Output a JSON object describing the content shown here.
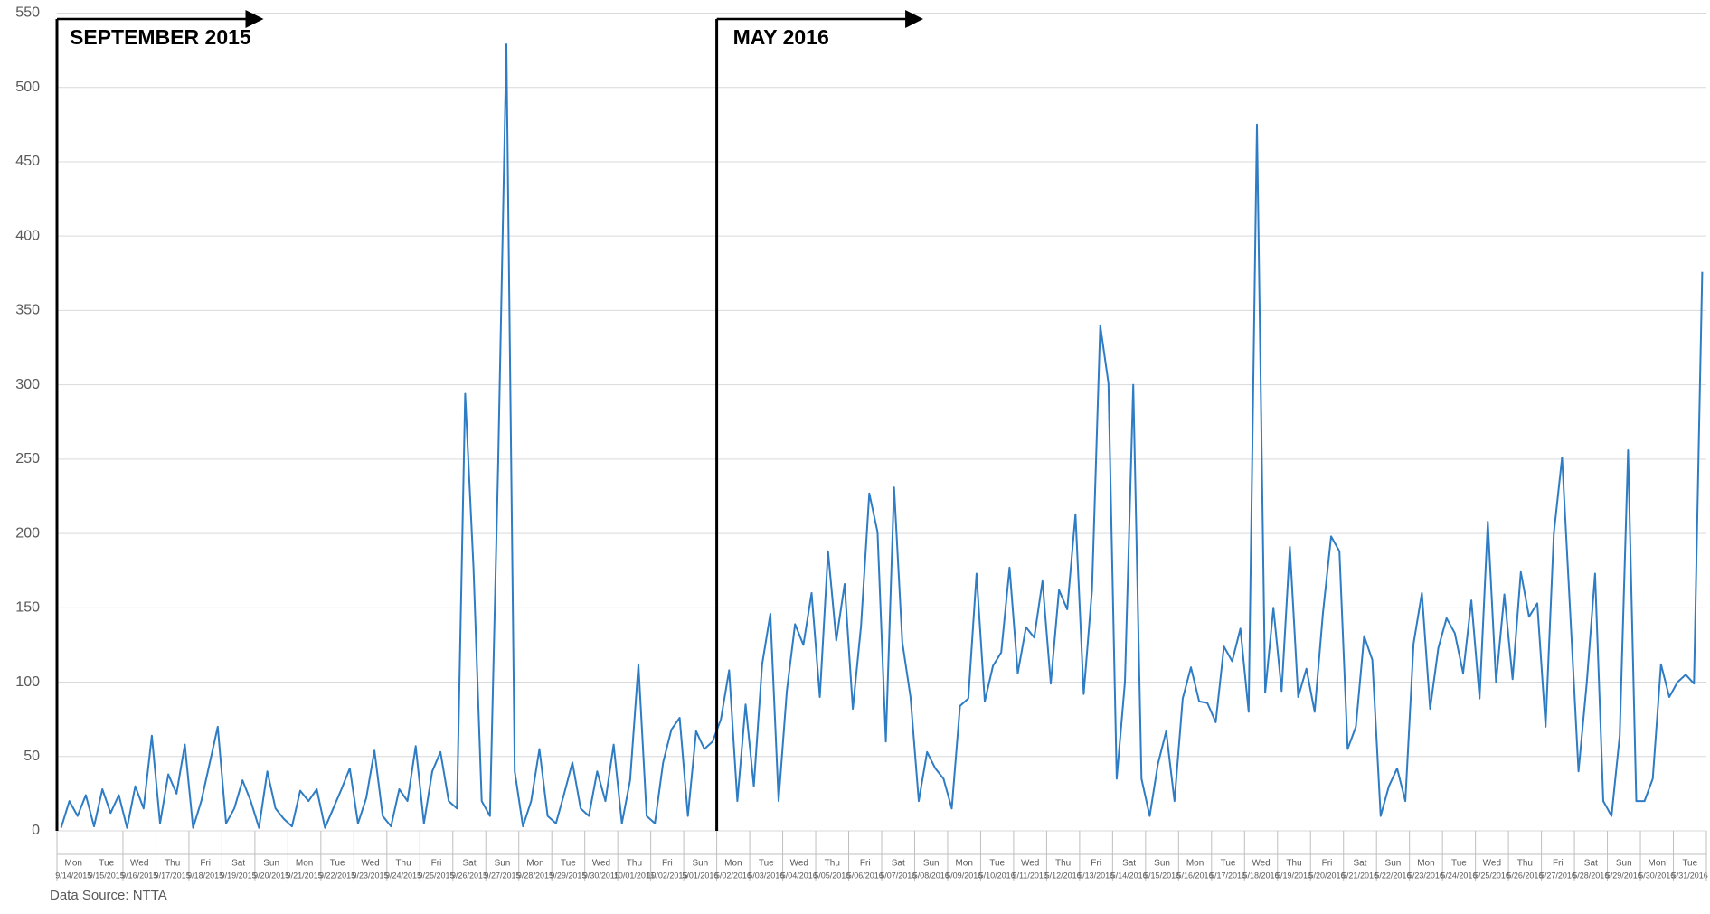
{
  "chart_data": {
    "type": "line",
    "annotations": [
      "SEPTEMBER 2015",
      "MAY 2016"
    ],
    "source": "Data Source: NTTA",
    "color": "#2e7cc4",
    "grid": true,
    "ylim": [
      0,
      550
    ],
    "yticks": [
      0,
      50,
      100,
      150,
      200,
      250,
      300,
      350,
      400,
      450,
      500,
      550
    ],
    "days": [
      {
        "weekday": "Mon",
        "date": "9/14/2015"
      },
      {
        "weekday": "Tue",
        "date": "9/15/2015"
      },
      {
        "weekday": "Wed",
        "date": "9/16/2015"
      },
      {
        "weekday": "Thu",
        "date": "9/17/2015"
      },
      {
        "weekday": "Fri",
        "date": "9/18/2015"
      },
      {
        "weekday": "Sat",
        "date": "9/19/2015"
      },
      {
        "weekday": "Sun",
        "date": "9/20/2015"
      },
      {
        "weekday": "Mon",
        "date": "9/21/2015"
      },
      {
        "weekday": "Tue",
        "date": "9/22/2015"
      },
      {
        "weekday": "Wed",
        "date": "9/23/2015"
      },
      {
        "weekday": "Thu",
        "date": "9/24/2015"
      },
      {
        "weekday": "Fri",
        "date": "9/25/2015"
      },
      {
        "weekday": "Sat",
        "date": "9/26/2015"
      },
      {
        "weekday": "Sun",
        "date": "9/27/2015"
      },
      {
        "weekday": "Mon",
        "date": "9/28/2015"
      },
      {
        "weekday": "Tue",
        "date": "9/29/2015"
      },
      {
        "weekday": "Wed",
        "date": "9/30/2015"
      },
      {
        "weekday": "Thu",
        "date": "10/01/2015"
      },
      {
        "weekday": "Fri",
        "date": "10/02/2015"
      },
      {
        "weekday": "Sun",
        "date": "5/01/2016"
      },
      {
        "weekday": "Mon",
        "date": "5/02/2016"
      },
      {
        "weekday": "Tue",
        "date": "5/03/2016"
      },
      {
        "weekday": "Wed",
        "date": "5/04/2016"
      },
      {
        "weekday": "Thu",
        "date": "5/05/2016"
      },
      {
        "weekday": "Fri",
        "date": "5/06/2016"
      },
      {
        "weekday": "Sat",
        "date": "5/07/2016"
      },
      {
        "weekday": "Sun",
        "date": "5/08/2016"
      },
      {
        "weekday": "Mon",
        "date": "5/09/2016"
      },
      {
        "weekday": "Tue",
        "date": "5/10/2016"
      },
      {
        "weekday": "Wed",
        "date": "5/11/2016"
      },
      {
        "weekday": "Thu",
        "date": "5/12/2016"
      },
      {
        "weekday": "Fri",
        "date": "5/13/2016"
      },
      {
        "weekday": "Sat",
        "date": "5/14/2016"
      },
      {
        "weekday": "Sun",
        "date": "5/15/2016"
      },
      {
        "weekday": "Mon",
        "date": "5/16/2016"
      },
      {
        "weekday": "Tue",
        "date": "5/17/2016"
      },
      {
        "weekday": "Wed",
        "date": "5/18/2016"
      },
      {
        "weekday": "Thu",
        "date": "5/19/2016"
      },
      {
        "weekday": "Fri",
        "date": "5/20/2016"
      },
      {
        "weekday": "Sat",
        "date": "5/21/2016"
      },
      {
        "weekday": "Sun",
        "date": "5/22/2016"
      },
      {
        "weekday": "Mon",
        "date": "5/23/2016"
      },
      {
        "weekday": "Tue",
        "date": "5/24/2016"
      },
      {
        "weekday": "Wed",
        "date": "5/25/2016"
      },
      {
        "weekday": "Thu",
        "date": "5/26/2016"
      },
      {
        "weekday": "Fri",
        "date": "5/27/2016"
      },
      {
        "weekday": "Sat",
        "date": "5/28/2016"
      },
      {
        "weekday": "Sun",
        "date": "5/29/2016"
      },
      {
        "weekday": "Mon",
        "date": "5/30/2016"
      },
      {
        "weekday": "Tue",
        "date": "5/31/2016"
      }
    ],
    "values": [
      2,
      20,
      10,
      24,
      3,
      28,
      12,
      24,
      2,
      30,
      15,
      64,
      5,
      38,
      25,
      58,
      2,
      20,
      45,
      70,
      5,
      15,
      34,
      20,
      2,
      40,
      15,
      8,
      3,
      27,
      20,
      28,
      2,
      15,
      28,
      42,
      5,
      22,
      54,
      10,
      3,
      28,
      20,
      57,
      5,
      40,
      53,
      20,
      15,
      294,
      177,
      20,
      10,
      247,
      529,
      40,
      3,
      20,
      55,
      10,
      5,
      25,
      46,
      15,
      10,
      40,
      20,
      58,
      5,
      34,
      112,
      10,
      5,
      46,
      68,
      76,
      10,
      67,
      55,
      60,
      75,
      108,
      20,
      85,
      30,
      112,
      146,
      20,
      94,
      139,
      125,
      160,
      90,
      188,
      128,
      166,
      82,
      138,
      227,
      201,
      60,
      231,
      127,
      90,
      20,
      53,
      42,
      35,
      15,
      84,
      89,
      173,
      87,
      111,
      120,
      177,
      106,
      137,
      130,
      168,
      99,
      162,
      149,
      213,
      92,
      162,
      340,
      301,
      35,
      100,
      300,
      35,
      10,
      45,
      67,
      20,
      89,
      110,
      87,
      86,
      73,
      124,
      114,
      136,
      80,
      475,
      93,
      150,
      94,
      191,
      90,
      109,
      80,
      146,
      198,
      188,
      55,
      70,
      131,
      115,
      10,
      30,
      42,
      20,
      126,
      160,
      82,
      123,
      143,
      133,
      106,
      155,
      89,
      208,
      100,
      159,
      102,
      174,
      144,
      153,
      70,
      200,
      251,
      146,
      40,
      100,
      173,
      20,
      10,
      64,
      256,
      20,
      20,
      35,
      112,
      90,
      100,
      105,
      99,
      376
    ]
  }
}
